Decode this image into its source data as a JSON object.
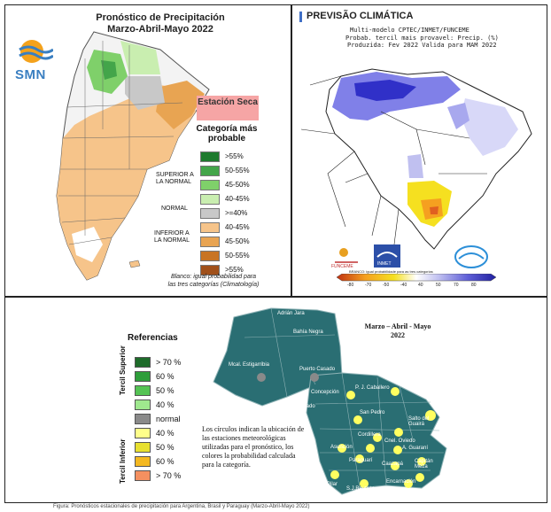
{
  "argentina": {
    "title_line1": "Pronóstico de Precipitación",
    "title_line2": "Marzo-Abril-Mayo 2022",
    "logo_text": "SMN",
    "estacion_seca": "Estación Seca",
    "category_title": "Categoría más probable",
    "group_superior": "SUPERIOR A LA NORMAL",
    "group_normal": "NORMAL",
    "group_inferior": "INFERIOR A LA NORMAL",
    "legend": [
      {
        "label": ">55%",
        "color": "#1e7a2e"
      },
      {
        "label": "50-55%",
        "color": "#43a54a"
      },
      {
        "label": "45-50%",
        "color": "#7fd06a"
      },
      {
        "label": "40-45%",
        "color": "#c9eeb0"
      },
      {
        "label": ">=40%",
        "color": "#c8c8c8"
      },
      {
        "label": "40-45%",
        "color": "#f6c48a"
      },
      {
        "label": "45-50%",
        "color": "#e8a452"
      },
      {
        "label": "50-55%",
        "color": "#c87424"
      },
      {
        "label": ">55%",
        "color": "#a0501a"
      }
    ],
    "note_line1": "Blanco: igual probabilidad para",
    "note_line2": "las tres categorías (Climatología)"
  },
  "brasil": {
    "title": "PREVISÃO CLIMÁTICA",
    "sub1": "Multi-modelo CPTEC/INMET/FUNCEME",
    "sub2": "Probab. tercil mais provavel: Precip. (%)",
    "sub3": "Produzida: Fev 2022  Valida para MAM 2022",
    "logo_funceme": "FUNCEME",
    "logo_inmet": "INMET",
    "colorbar_note": "BRANCO: igual probabilidade para as tres categorias",
    "colorbar_ticks": [
      "-80",
      "-70",
      "-50",
      "-40",
      "40",
      "50",
      "70",
      "80"
    ]
  },
  "paraguay": {
    "title_line1": "Marzo – Abril - Mayo",
    "title_line2": "2022",
    "ref_title": "Referencias",
    "tercil_superior": "Tercil Superior",
    "tercil_inferior": "Tercil Inferior",
    "legend": [
      {
        "label": "> 70 %",
        "color": "#1e6b2a"
      },
      {
        "label": "60 %",
        "color": "#2e9e3a"
      },
      {
        "label": "50 %",
        "color": "#55c354"
      },
      {
        "label": "40 %",
        "color": "#9fe88e"
      },
      {
        "label": "normal",
        "color": "#8a8a8a"
      },
      {
        "label": "40 %",
        "color": "#ffff8a"
      },
      {
        "label": "50 %",
        "color": "#e8e030"
      },
      {
        "label": "60 %",
        "color": "#f4b820"
      },
      {
        "label": "> 70 %",
        "color": "#f49060"
      }
    ],
    "note": "Los círculos indican la ubicación de las estaciones meteorológicas utilizadas para el pronóstico, los colores la probabilidad calculada para la categoría.",
    "cities": {
      "adrian_jara": "Adrián Jara",
      "bahia_negra": "Bahía Negra",
      "estigarribia": "Mcal. Estigarribia",
      "puerto_casado": "Puerto Casado",
      "concepcion": "Concepción",
      "pj_caballero": "P. J. Caballero",
      "pozo_colorado": "Pozo Colorado",
      "san_pedro": "San Pedro",
      "salto_guaira": "Salto del Guairá",
      "cordillera": "Cordillera",
      "asuncion": "Asunción",
      "coronel_oviedo": "Cnel. Oviedo",
      "guarani": "A. Guaraní",
      "paraguari": "Paraguarí",
      "caazapa": "Caazapá",
      "capitan_meza": "Capitán Meza",
      "encarnacion": "Encarnación",
      "pilar": "Pilar",
      "san_juan_bautista": "S.J.Bautista"
    }
  },
  "caption": "Figura: Pronósticos estacionales de precipitación para Argentina, Brasil y Paraguay (Marzo-Abril-Mayo 2022)"
}
